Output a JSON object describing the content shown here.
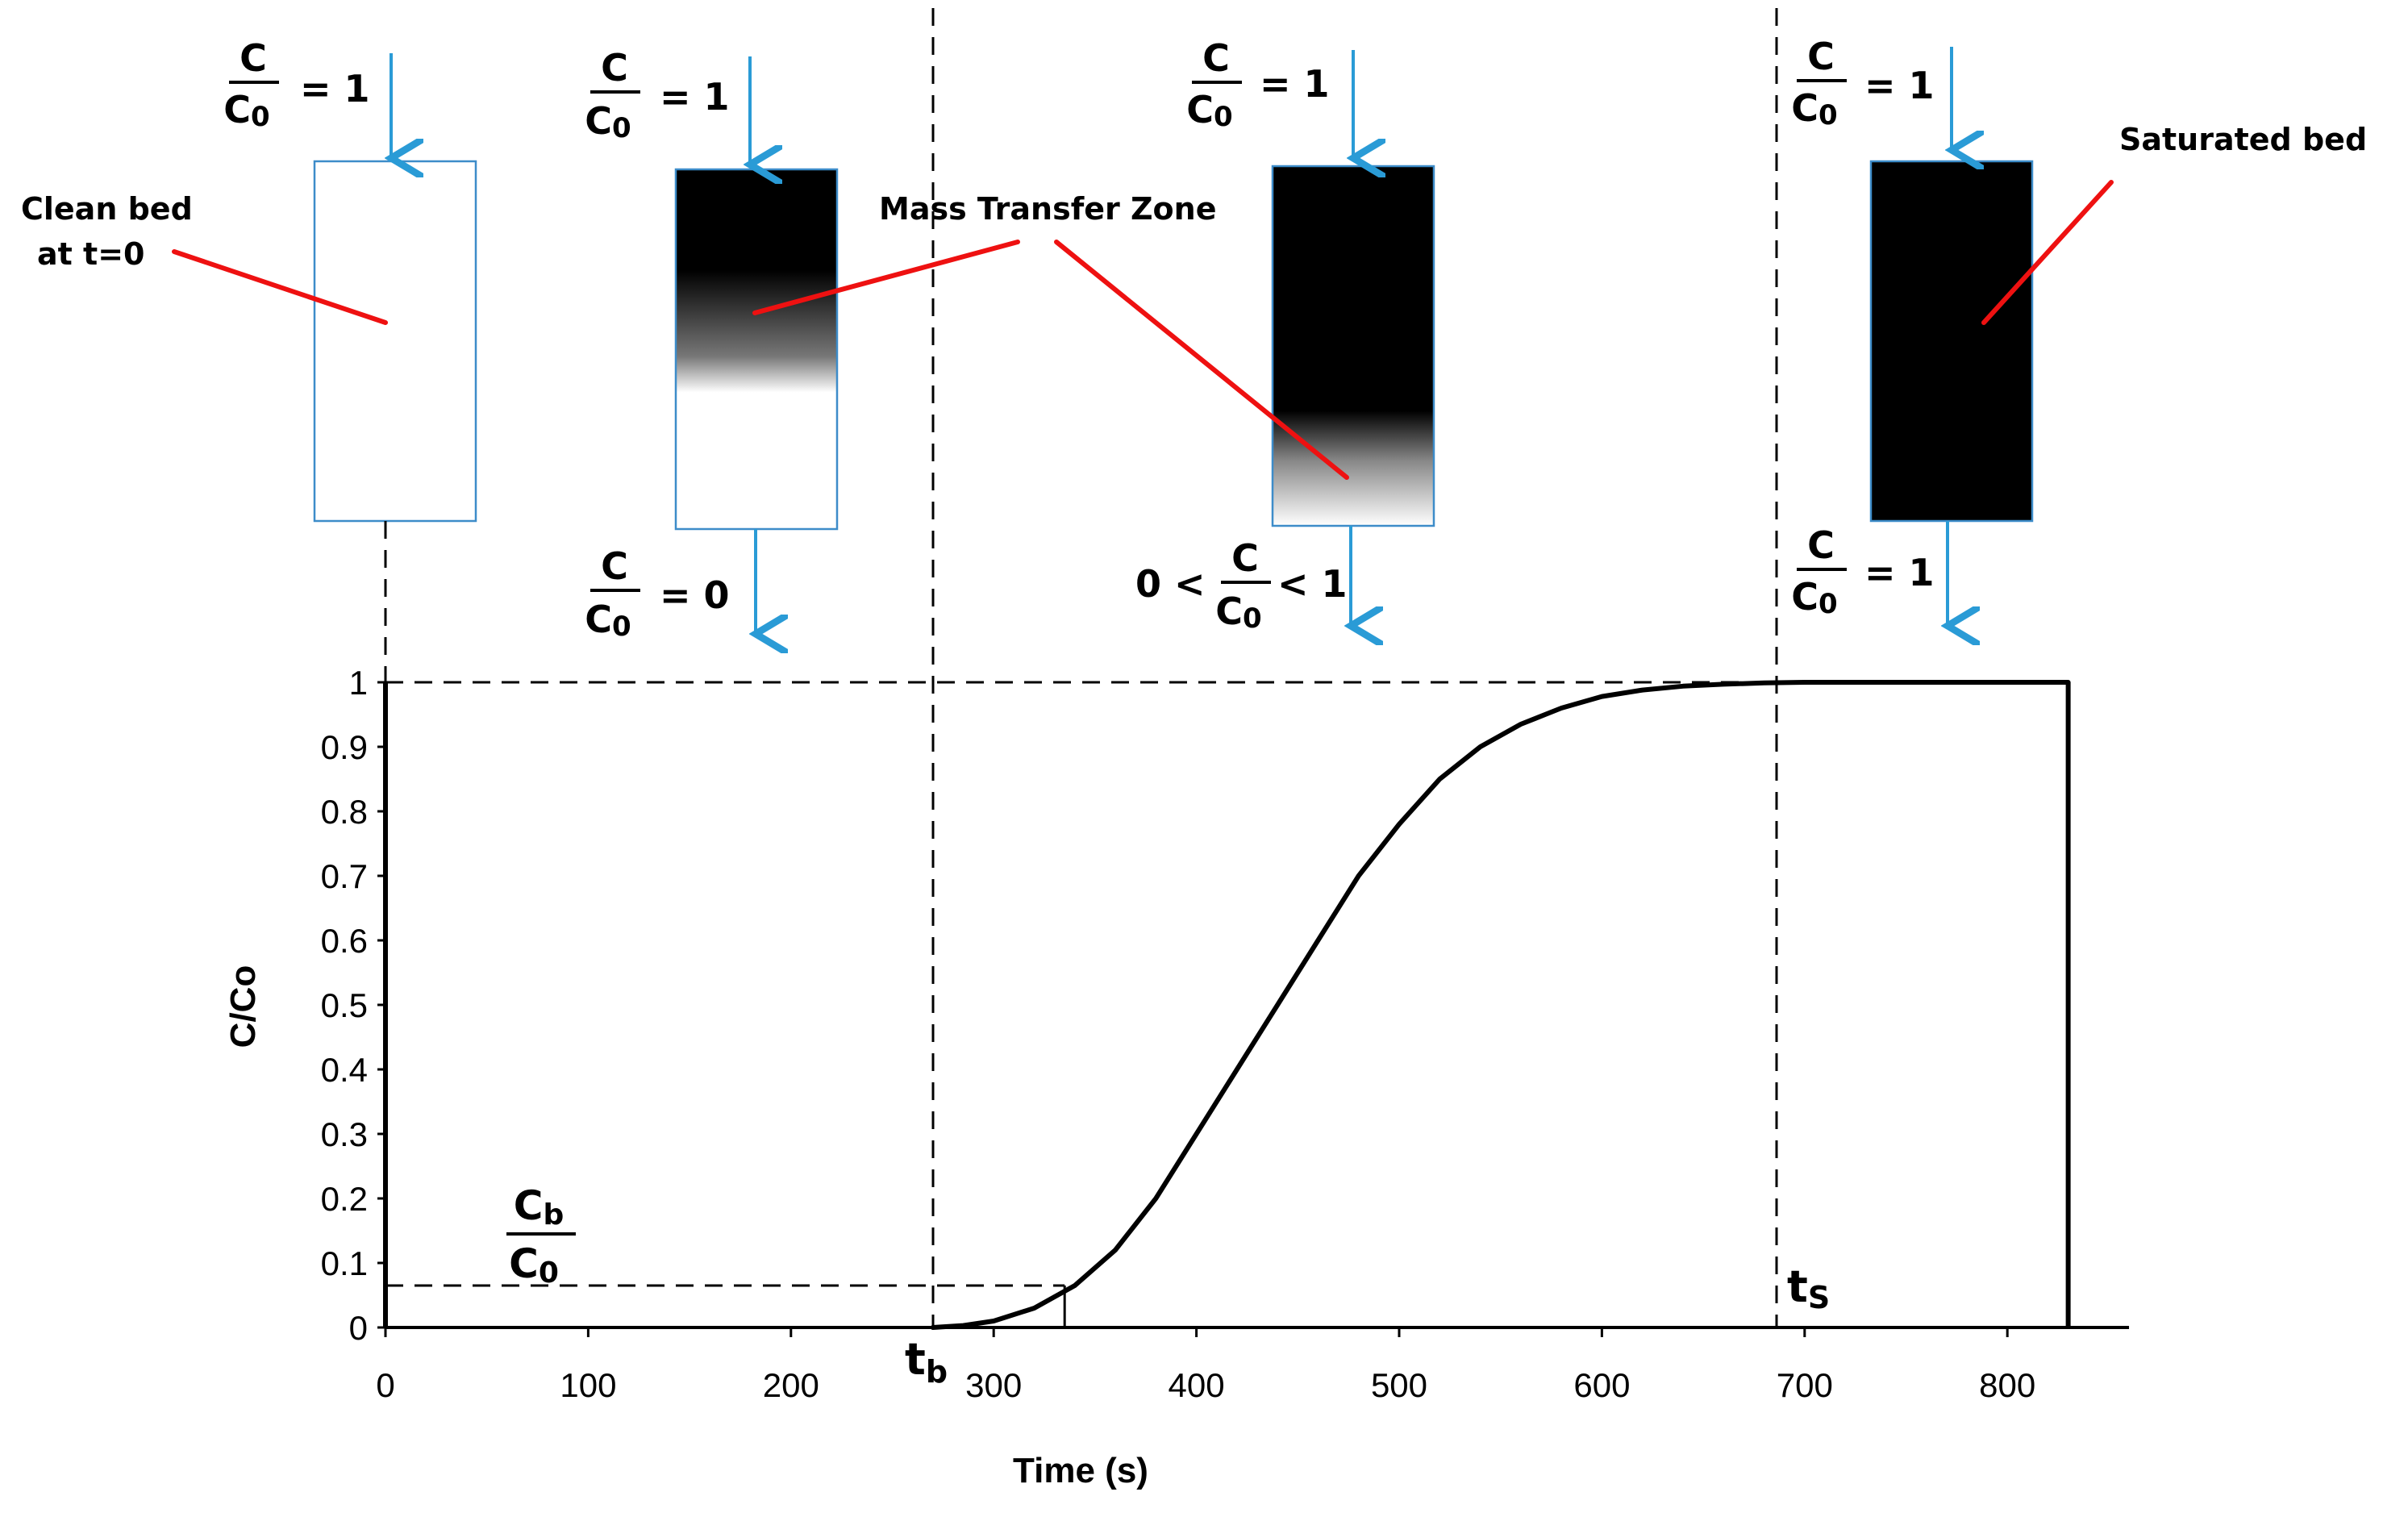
{
  "chart_data": {
    "type": "line",
    "xlabel": "Time (s)",
    "ylabel": "C/Co",
    "xlim": [
      0,
      860
    ],
    "ylim": [
      0,
      1
    ],
    "x_ticks": [
      "0",
      "100",
      "200",
      "300",
      "400",
      "500",
      "600",
      "700",
      "800"
    ],
    "y_ticks": [
      "0",
      "0.1",
      "0.2",
      "0.3",
      "0.4",
      "0.5",
      "0.6",
      "0.7",
      "0.8",
      "0.9",
      "1"
    ],
    "series": [
      {
        "x": [
          270,
          285,
          300,
          320,
          340,
          360,
          380,
          400,
          420,
          440,
          460,
          480,
          500,
          520,
          540,
          560,
          580,
          600,
          620,
          640,
          660,
          680,
          700,
          720,
          760,
          800,
          830
        ],
        "y": [
          0.0,
          0.003,
          0.01,
          0.03,
          0.065,
          0.12,
          0.2,
          0.3,
          0.4,
          0.5,
          0.6,
          0.7,
          0.78,
          0.85,
          0.9,
          0.935,
          0.96,
          0.978,
          0.988,
          0.994,
          0.997,
          0.999,
          1.0,
          1.0,
          1.0,
          1.0,
          1.0
        ]
      }
    ],
    "boundary_x": 830,
    "tb": 270,
    "ts": 680,
    "cb_ratio": 0.065,
    "cb_time": 335,
    "grid": false
  },
  "labels": {
    "tb_main": "t",
    "tb_sub": "b",
    "ts_main": "t",
    "ts_sub": "S",
    "cb_num_main": "C",
    "cb_num_sub": "b",
    "cb_den_main": "C",
    "cb_den_sub": "0"
  },
  "annotations": {
    "clean_bed_line1": "Clean bed",
    "clean_bed_line2": "at t=0",
    "mass_transfer_zone": "Mass Transfer Zone",
    "saturated_bed": "Saturated bed"
  },
  "ratio": {
    "num": "C",
    "den_main": "C",
    "den_sub": "0"
  },
  "beds": [
    {
      "inlet_value": "= 1",
      "outlet_prefix": "",
      "outlet_value": ""
    },
    {
      "inlet_value": "= 1",
      "outlet_prefix": "",
      "outlet_value": "= 0"
    },
    {
      "inlet_value": "= 1",
      "outlet_prefix": "0 <",
      "outlet_value": "< 1"
    },
    {
      "inlet_value": "= 1",
      "outlet_prefix": "",
      "outlet_value": "= 1"
    }
  ],
  "colors": {
    "arrow": "#2a9bd6",
    "pointer": "#ee1111",
    "bed_outline": "#3d8cc9",
    "curve": "#000000",
    "axis": "#000000"
  }
}
